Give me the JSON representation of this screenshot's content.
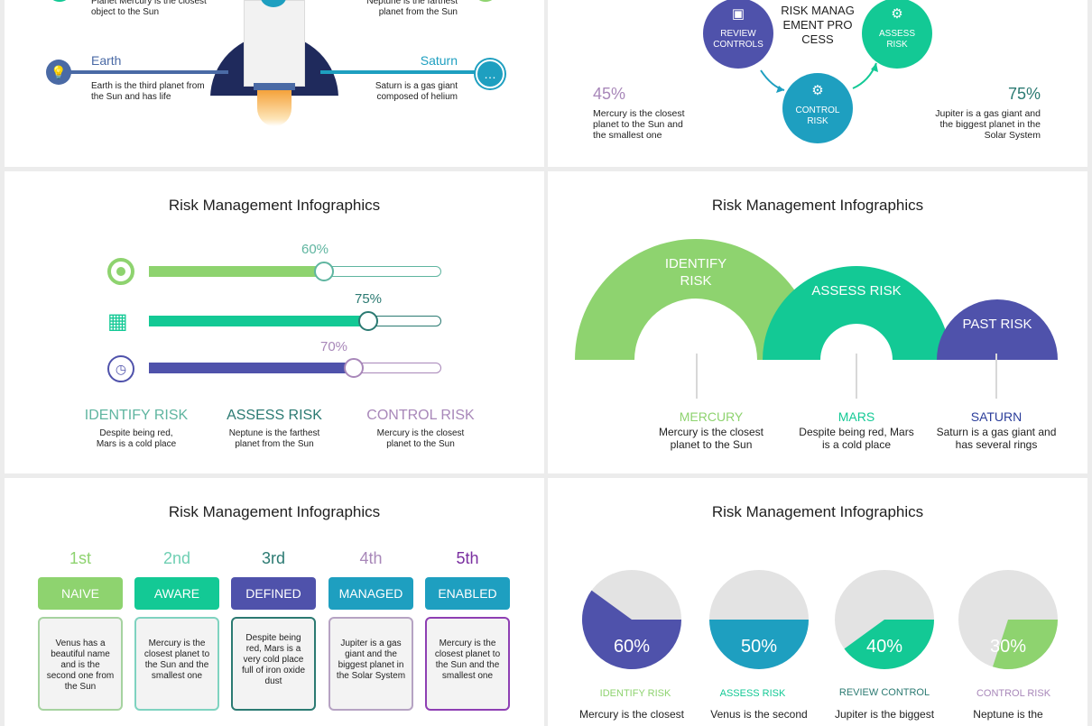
{
  "colors": {
    "green": "#8ed36f",
    "teal": "#13c995",
    "indigo": "#4f52ab",
    "cyan": "#1e9fc0",
    "purple": "#a887b9",
    "dark_teal": "#2b7a72",
    "navy": "#1f2a5c"
  },
  "slide1": {
    "top_left_text": "Planet Mercury is the closest object to the Sun",
    "top_right_text": "Neptune is the farthest planet from the Sun",
    "left_label": "Earth",
    "left_text": "Earth is the third planet from the Sun and has life",
    "right_label": "Saturn",
    "right_text": "Saturn is a gas giant composed of helium",
    "icons": [
      "lightbulb-icon",
      "chat-icon",
      "rocket-icon"
    ]
  },
  "slide2": {
    "center_title": "RISK MANAGEMENT PROCESS",
    "nodes": [
      {
        "label": "REVIEW CONTROLS",
        "icon": "monitor-icon"
      },
      {
        "label": "ASSESS RISK",
        "icon": "hand-gear-icon"
      },
      {
        "label": "CONTROL RISK",
        "icon": "browser-gear-icon"
      }
    ],
    "left_pct": "45%",
    "left_text": "Mercury is the closest planet to the Sun and the smallest one",
    "right_pct": "75%",
    "right_text": "Jupiter is a gas giant and the biggest planet in the Solar System"
  },
  "slide3": {
    "title": "Risk Management Infographics",
    "bars": [
      {
        "percent_label": "60%",
        "value": 0.6,
        "icon": "target-icon"
      },
      {
        "percent_label": "75%",
        "value": 0.75,
        "icon": "calendar-clock-icon"
      },
      {
        "percent_label": "70%",
        "value": 0.7,
        "icon": "clock-refresh-icon"
      }
    ],
    "columns": [
      {
        "heading": "IDENTIFY RISK",
        "text": "Despite being red, Mars is a cold place"
      },
      {
        "heading": "ASSESS RISK",
        "text": "Neptune is the farthest planet from the Sun"
      },
      {
        "heading": "CONTROL RISK",
        "text": "Mercury is the closest planet to the Sun"
      }
    ]
  },
  "slide4": {
    "title": "Risk Management Infographics",
    "arches": [
      {
        "label": "IDENTIFY RISK",
        "name": "MERCURY",
        "text": "Mercury is the closest planet to the Sun"
      },
      {
        "label": "ASSESS RISK",
        "name": "MARS",
        "text": "Despite being red, Mars is a cold place"
      },
      {
        "label": "PAST RISK",
        "name": "SATURN",
        "text": "Saturn is a gas giant and has several rings"
      }
    ]
  },
  "slide5": {
    "title": "Risk Management Infographics",
    "stages": [
      {
        "rank": "1st",
        "label": "NAIVE",
        "text": "Venus has a beautiful name and is the second one from the Sun"
      },
      {
        "rank": "2nd",
        "label": "AWARE",
        "text": "Mercury is the closest planet to the Sun and the smallest one"
      },
      {
        "rank": "3rd",
        "label": "DEFINED",
        "text": "Despite being red, Mars is a very cold place full of iron oxide dust"
      },
      {
        "rank": "4th",
        "label": "MANAGED",
        "text": "Jupiter is a gas giant and the biggest planet in the Solar System"
      },
      {
        "rank": "5th",
        "label": "ENABLED",
        "text": "Mercury is the closest planet to the Sun and the smallest one"
      }
    ]
  },
  "slide6": {
    "title": "Risk Management Infographics",
    "pies": [
      {
        "percent_label": "60%",
        "value": 0.6,
        "label": "IDENTIFY RISK",
        "text": "Mercury is the closest"
      },
      {
        "percent_label": "50%",
        "value": 0.5,
        "label": "ASSESS RISK",
        "text": "Venus is the second"
      },
      {
        "percent_label": "40%",
        "value": 0.4,
        "label": "REVIEW CONTROL",
        "text": "Jupiter is the biggest"
      },
      {
        "percent_label": "30%",
        "value": 0.3,
        "label": "CONTROL RISK",
        "text": "Neptune is the"
      }
    ]
  }
}
